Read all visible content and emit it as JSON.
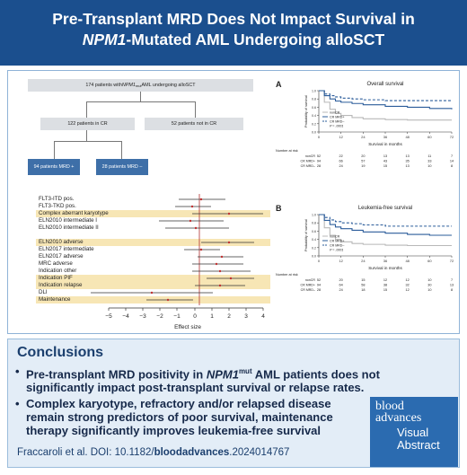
{
  "header": {
    "title_line1": "Pre-Transplant MRD Does Not Impact Survival in",
    "title_line2_italic": "NPM1",
    "title_line2_rest": "-Mutated AML Undergoing alloSCT"
  },
  "flowchart": {
    "top_box_pre": "174 patients with ",
    "top_box_gene": "NPM1",
    "top_box_sup": "mut",
    "top_box_post": " AML undergoing alloSCT",
    "cr_box": "122 patients in CR",
    "not_cr_box": "52 patients not in CR",
    "mrd_pos_box": "94 patients MRD +",
    "mrd_neg_box": "28 patients MRD –"
  },
  "forest": {
    "labels": [
      "FLT3-ITD pos.",
      "FLT3-TKD pos.",
      "Complex aberrant karyotype",
      "ELN2010 intermediate I",
      "ELN2010 intermediate II",
      "ELN2010 adverse",
      "ELN2017 intermediate",
      "ELN2017 adverse",
      "MRC adverse",
      "Indication other",
      "Indication PIF",
      "Indication relapse",
      "DLI",
      "Maintenance"
    ],
    "xlabel": "Effect size",
    "ticks": [
      "−5",
      "−4",
      "−3",
      "−2",
      "−1",
      "0",
      "1",
      "2",
      "3",
      "4"
    ]
  },
  "chart_data": [
    {
      "type": "line",
      "panel_letter": "A",
      "title": "Overall survival",
      "xlabel": "Survival in months",
      "ylabel": "Probability of survival",
      "x_ticks": [
        0,
        12,
        24,
        36,
        48,
        60,
        72
      ],
      "y_ticks": [
        0.0,
        0.2,
        0.4,
        0.6,
        0.8,
        1.0
      ],
      "legend": [
        "nonCR",
        "CR MRD+",
        "CR MRD–"
      ],
      "p_value": "P = .0001",
      "series": [
        {
          "name": "nonCR",
          "x": [
            0,
            3,
            6,
            9,
            12,
            18,
            24,
            36,
            48,
            60,
            72
          ],
          "y": [
            1.0,
            0.72,
            0.55,
            0.45,
            0.4,
            0.35,
            0.32,
            0.3,
            0.29,
            0.29,
            0.29
          ]
        },
        {
          "name": "CR MRD+",
          "x": [
            0,
            3,
            6,
            9,
            12,
            18,
            24,
            36,
            48,
            60,
            72
          ],
          "y": [
            1.0,
            0.88,
            0.8,
            0.75,
            0.72,
            0.69,
            0.66,
            0.62,
            0.6,
            0.57,
            0.55
          ]
        },
        {
          "name": "CR MRD–",
          "x": [
            0,
            3,
            6,
            9,
            12,
            18,
            24,
            36,
            48,
            60,
            72
          ],
          "y": [
            1.0,
            0.92,
            0.88,
            0.85,
            0.82,
            0.8,
            0.78,
            0.76,
            0.76,
            0.76,
            0.76
          ]
        }
      ],
      "at_risk_title": "Number at risk",
      "at_risk": [
        {
          "name": "nonCR",
          "values": [
            52,
            22,
            20,
            13,
            13,
            11,
            7
          ]
        },
        {
          "name": "CR MRD+",
          "values": [
            94,
            66,
            57,
            43,
            35,
            33,
            14
          ]
        },
        {
          "name": "CR MRD–",
          "values": [
            28,
            24,
            19,
            15,
            13,
            10,
            8
          ]
        }
      ]
    },
    {
      "type": "line",
      "panel_letter": "B",
      "title": "Leukemia-free survival",
      "xlabel": "Survival in months",
      "ylabel": "Probability of survival",
      "x_ticks": [
        0,
        12,
        24,
        36,
        48,
        60,
        72
      ],
      "y_ticks": [
        0.0,
        0.2,
        0.4,
        0.6,
        0.8,
        1.0
      ],
      "legend": [
        "nonCR",
        "CR MRD+",
        "CR MRD–"
      ],
      "p_value": "P = .0001",
      "series": [
        {
          "name": "nonCR",
          "x": [
            0,
            3,
            6,
            9,
            12,
            18,
            24,
            36,
            48,
            60,
            72
          ],
          "y": [
            1.0,
            0.68,
            0.5,
            0.4,
            0.34,
            0.3,
            0.28,
            0.26,
            0.25,
            0.25,
            0.25
          ]
        },
        {
          "name": "CR MRD+",
          "x": [
            0,
            3,
            6,
            9,
            12,
            18,
            24,
            36,
            48,
            60,
            72
          ],
          "y": [
            1.0,
            0.86,
            0.76,
            0.7,
            0.66,
            0.62,
            0.58,
            0.55,
            0.52,
            0.5,
            0.5
          ]
        },
        {
          "name": "CR MRD–",
          "x": [
            0,
            3,
            6,
            9,
            12,
            18,
            24,
            36,
            48,
            60,
            72
          ],
          "y": [
            1.0,
            0.93,
            0.87,
            0.83,
            0.8,
            0.78,
            0.75,
            0.72,
            0.72,
            0.72,
            0.72
          ]
        }
      ],
      "at_risk_title": "Number at risk",
      "at_risk": [
        {
          "name": "nonCR",
          "values": [
            52,
            20,
            15,
            12,
            12,
            10,
            7
          ]
        },
        {
          "name": "CR MRD+",
          "values": [
            94,
            64,
            58,
            38,
            32,
            30,
            13
          ]
        },
        {
          "name": "CR MRD–",
          "values": [
            28,
            24,
            18,
            15,
            12,
            10,
            8
          ]
        }
      ]
    }
  ],
  "colors": {
    "header_bg": "#1b4f8e",
    "nonCR": "#b8b8b8",
    "cr_mrd_pos": "#2b5c9a",
    "cr_mrd_neg": "#2b5c9a",
    "forest_point": "#c03030",
    "highlight_band": "#f7e6b5",
    "logo_bg": "#2b6bb0"
  },
  "conclusions": {
    "title": "Conclusions",
    "b1_l1_pre": "Pre-transplant MRD positivity in ",
    "b1_l1_gene": "NPM1",
    "b1_l1_sup": "mut",
    "b1_l1_post": " AML patients does not",
    "b1_l2": "significantly impact post-transplant survival or relapse rates.",
    "b2_l1": "Complex karyotype, refractory and/or relapsed disease",
    "b2_l2": "remain strong predictors of poor survival, maintenance",
    "b2_l3": "therapy significantly improves leukemia-free survival",
    "citation_pre": "Fraccaroli et al. DOI: 10.1182/",
    "citation_bold": "bloodadvances",
    "citation_post": ".2024014767"
  },
  "logo": {
    "line1": "blood",
    "line2": "advances",
    "line3": "Visual",
    "line4": "Abstract"
  }
}
